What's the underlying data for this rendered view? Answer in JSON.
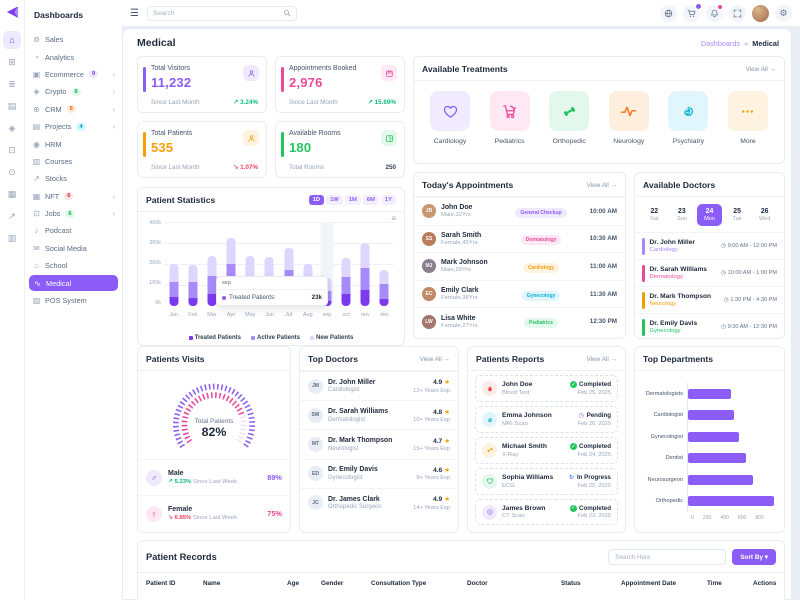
{
  "brand": {
    "name": "Dashboards"
  },
  "rail": {
    "icons": [
      {
        "name": "home-icon",
        "glyph": "⌂",
        "active": true
      },
      {
        "name": "apps-grid-icon",
        "glyph": "⊞"
      },
      {
        "name": "layers-icon",
        "glyph": "≣"
      },
      {
        "name": "pages-icon",
        "glyph": "▤"
      },
      {
        "name": "widgets-icon",
        "glyph": "◈"
      },
      {
        "name": "components-icon",
        "glyph": "⊡"
      },
      {
        "name": "explore-icon",
        "glyph": "⊙"
      },
      {
        "name": "media-icon",
        "glyph": "▦"
      },
      {
        "name": "charts-icon",
        "glyph": "↗"
      },
      {
        "name": "kanban-icon",
        "glyph": "▥"
      }
    ]
  },
  "sidebar": {
    "title": "Dashboards",
    "items": [
      {
        "label": "Sales",
        "icon": "sales-icon",
        "glyph": "⊚"
      },
      {
        "label": "Analytics",
        "icon": "analytics-icon",
        "glyph": "◔"
      },
      {
        "label": "Ecommerce",
        "icon": "ecommerce-icon",
        "glyph": "▣",
        "badge": "9",
        "badge_color": "#7c3aed",
        "badge_bg": "#ede9fe",
        "chevron": "›"
      },
      {
        "label": "Crypto",
        "icon": "crypto-icon",
        "glyph": "◈",
        "badge": "6",
        "badge_color": "#16a34a",
        "badge_bg": "#dcfce7",
        "chevron": "›"
      },
      {
        "label": "CRM",
        "icon": "crm-icon",
        "glyph": "⊕",
        "badge": "5",
        "badge_color": "#ea580c",
        "badge_bg": "#ffedd5",
        "chevron": "›"
      },
      {
        "label": "Projects",
        "icon": "projects-icon",
        "glyph": "▤",
        "badge": "4",
        "badge_color": "#0891b2",
        "badge_bg": "#cffafe",
        "chevron": "›"
      },
      {
        "label": "HRM",
        "icon": "hrm-icon",
        "glyph": "◉"
      },
      {
        "label": "Courses",
        "icon": "courses-icon",
        "glyph": "▥"
      },
      {
        "label": "Stocks",
        "icon": "stocks-icon",
        "glyph": "↗"
      },
      {
        "label": "NFT",
        "icon": "nft-icon",
        "glyph": "▦",
        "badge": "6",
        "badge_color": "#dc2626",
        "badge_bg": "#fee2e2",
        "chevron": "›"
      },
      {
        "label": "Jobs",
        "icon": "jobs-icon",
        "glyph": "⊡",
        "badge": "6",
        "badge_color": "#16a34a",
        "badge_bg": "#dcfce7",
        "chevron": "›"
      },
      {
        "label": "Podcast",
        "icon": "podcast-icon",
        "glyph": "♪"
      },
      {
        "label": "Social Media",
        "icon": "social-media-icon",
        "glyph": "✉"
      },
      {
        "label": "School",
        "icon": "school-icon",
        "glyph": "⌂"
      },
      {
        "label": "Medical",
        "icon": "medical-icon",
        "glyph": "∿",
        "active": true
      },
      {
        "label": "POS System",
        "icon": "pos-icon",
        "glyph": "▨"
      }
    ]
  },
  "header": {
    "search_placeholder": "Search",
    "icons": [
      {
        "name": "language-globe-icon"
      },
      {
        "name": "cart-icon",
        "badge_dot": true
      },
      {
        "name": "notifications-bell-icon",
        "dot": true
      },
      {
        "name": "fullscreen-icon"
      },
      {
        "name": "user-avatar"
      },
      {
        "name": "settings-gear-icon"
      }
    ]
  },
  "page": {
    "title": "Medical",
    "breadcrumb": {
      "parent": "Dashboards",
      "separator": "»",
      "current": "Medical"
    }
  },
  "stats": {
    "cards": [
      {
        "label": "Total Visitors",
        "value": "11,232",
        "accent": "#8b5cf6",
        "icon": "user-icon",
        "symbol": "icon-user",
        "icon_bg": "#efeafe",
        "note": "Since Last Month",
        "delta": "↗ 3.24%",
        "delta_color": "#10b981"
      },
      {
        "label": "Appointments Booked",
        "value": "2,976",
        "accent": "#ec4899",
        "icon": "calendar-icon",
        "symbol": "icon-calendar",
        "icon_bg": "#fde8f3",
        "note": "Since Last Month",
        "delta": "↗ 15.69%",
        "delta_color": "#10b981"
      },
      {
        "label": "Total Patients",
        "value": "535",
        "accent": "#f59e0b",
        "icon": "patient-icon",
        "symbol": "icon-user",
        "icon_bg": "#fef3e0",
        "note": "Since Last Month",
        "delta": "↘ 1.07%",
        "delta_color": "#f43f5e"
      },
      {
        "label": "Available Rooms",
        "value": "180",
        "accent": "#22c55e",
        "icon": "room-icon",
        "symbol": "icon-room",
        "icon_bg": "#e4f8ec",
        "note": "Total Rooms",
        "delta": "250",
        "delta_color": "#334155"
      }
    ]
  },
  "treatments": {
    "title": "Available Treatments",
    "view_all": "View All →",
    "items": [
      {
        "label": "Cardiology",
        "icon": "heart-icon",
        "symbol": "icon-heart",
        "bg": "#f0ebfe",
        "color": "#8b5cf6"
      },
      {
        "label": "Pediatrics",
        "icon": "stroller-icon",
        "symbol": "icon-stroller",
        "bg": "#fde8f4",
        "color": "#ec4899"
      },
      {
        "label": "Orthopedic",
        "icon": "bone-icon",
        "symbol": "icon-bone",
        "bg": "#e3f7ec",
        "color": "#22c55e"
      },
      {
        "label": "Neurology",
        "icon": "pulse-icon",
        "symbol": "icon-pulse",
        "bg": "#fdeede",
        "color": "#f97316"
      },
      {
        "label": "Psychiatry",
        "icon": "brain-icon",
        "symbol": "icon-brain",
        "bg": "#e0f5fc",
        "color": "#06b6d4"
      },
      {
        "label": "More",
        "icon": "more-dots-icon",
        "symbol": "icon-dots",
        "bg": "#fdf3e0",
        "color": "#f59e0b"
      }
    ]
  },
  "appointments": {
    "title": "Today's Appointments",
    "view_all": "View All →",
    "rows": [
      {
        "initials": "JD",
        "avatar_bg": "#c99772",
        "name": "John Doe",
        "meta": "Male,32Yrs",
        "badge": "General Checkup",
        "badge_color": "#8b5cf6",
        "badge_bg": "#f0eafe",
        "time": "10:00 AM"
      },
      {
        "initials": "SS",
        "avatar_bg": "#b97c5d",
        "name": "Sarah Smith",
        "meta": "Female,45Yrs",
        "badge": "Dermatology",
        "badge_color": "#ec4899",
        "badge_bg": "#fde8f3",
        "time": "10:30 AM"
      },
      {
        "initials": "MJ",
        "avatar_bg": "#8a7e8f",
        "name": "Mark Johnson",
        "meta": "Male,29Yrs",
        "badge": "Cardiology",
        "badge_color": "#f59e0b",
        "badge_bg": "#fef3e0",
        "time": "11:00 AM"
      },
      {
        "initials": "EC",
        "avatar_bg": "#c08a66",
        "name": "Emily Clark",
        "meta": "Female,38Yrs",
        "badge": "Gynecology",
        "badge_color": "#06b6d4",
        "badge_bg": "#e0f6fc",
        "time": "11:30 AM"
      },
      {
        "initials": "LW",
        "avatar_bg": "#a2766b",
        "name": "Lisa White",
        "meta": "Female,27Yrs",
        "badge": "Pediatrics",
        "badge_color": "#22c55e",
        "badge_bg": "#e4f8ec",
        "time": "12:30 PM"
      }
    ]
  },
  "available_doctors": {
    "title": "Available Doctors",
    "days": [
      {
        "num": "22",
        "day": "Sat"
      },
      {
        "num": "23",
        "day": "Sun"
      },
      {
        "num": "24",
        "day": "Mon",
        "active": true
      },
      {
        "num": "25",
        "day": "Tue"
      },
      {
        "num": "26",
        "day": "Wed"
      }
    ],
    "clock_glyph": "◷",
    "rows": [
      {
        "name": "Dr. John Miller",
        "specialty": "Cardiology",
        "color": "#a78bfa",
        "time": "9:00 AM - 12:00 PM"
      },
      {
        "name": "Dr. Sarah Williams",
        "specialty": "Dermatology",
        "color": "#ec4899",
        "time": "10:00 AM - 1:00 PM"
      },
      {
        "name": "Dr. Mark Thompson",
        "specialty": "Neurology",
        "color": "#f59e0b",
        "time": "1:30 PM - 4:30 PM"
      },
      {
        "name": "Dr. Emily Davis",
        "specialty": "Gynecology",
        "color": "#22c55e",
        "time": "9:30 AM - 12:30 PM"
      }
    ]
  },
  "visits": {
    "title": "Patients Visits",
    "center_label": "Total Patients",
    "center_value": "82%",
    "rows": [
      {
        "label": "Male",
        "glyph": "♂",
        "color": "#8b5cf6",
        "bg": "#efeafe",
        "delta": "↗ 5.23%",
        "delta_color": "#10b981",
        "note": " Since Last Week",
        "value": "89%"
      },
      {
        "label": "Female",
        "glyph": "♀",
        "color": "#ec4899",
        "bg": "#fde8f3",
        "delta": "↘ 6.85%",
        "delta_color": "#f43f5e",
        "note": " Since Last Week",
        "value": "75%"
      }
    ]
  },
  "top_doctors": {
    "title": "Top Doctors",
    "view_all": "View All →",
    "star": "★",
    "rows": [
      {
        "initials": "JM",
        "name": "Dr. John Miller",
        "specialty": "Cardiologist",
        "rating": "4.9",
        "exp": "12+ Years Exp"
      },
      {
        "initials": "SW",
        "name": "Dr. Sarah Williams",
        "specialty": "Dermatologist",
        "rating": "4.8",
        "exp": "10+ Years Exp"
      },
      {
        "initials": "MT",
        "name": "Dr. Mark Thompson",
        "specialty": "Neurologist",
        "rating": "4.7",
        "exp": "15+ Years Exp"
      },
      {
        "initials": "ED",
        "name": "Dr. Emily Davis",
        "specialty": "Gynecologist",
        "rating": "4.6",
        "exp": "9+ Years Exp"
      },
      {
        "initials": "JC",
        "name": "Dr. James Clark",
        "specialty": "Orthopedic Surgeon",
        "rating": "4.9",
        "exp": "14+ Years Exp"
      }
    ]
  },
  "reports": {
    "title": "Patients Reports",
    "view_all": "View All →",
    "rows": [
      {
        "name": "John Doe",
        "test": "Blood Test",
        "icon": "blood-drop-icon",
        "symbol": "icon-drop",
        "color": "#ef4444",
        "bg": "#fdeaea",
        "status": "Completed",
        "status_icon": "✓",
        "status_icon_color": "#ffffff",
        "status_icon_bg": "#22c55e",
        "date": "Feb 25, 2025"
      },
      {
        "name": "Emma Johnson",
        "test": "MRI Scan",
        "icon": "brain-icon",
        "symbol": "icon-brain",
        "color": "#06b6d4",
        "bg": "#e0f6fc",
        "status": "Pending",
        "status_icon": "◷",
        "status_icon_color": "#8b5cf6",
        "status_icon_bg": "transparent",
        "date": "Feb 26, 2025"
      },
      {
        "name": "Michael Smith",
        "test": "X-Ray",
        "icon": "bone-icon",
        "symbol": "icon-bone",
        "color": "#f59e0b",
        "bg": "#fef3e0",
        "status": "Completed",
        "status_icon": "✓",
        "status_icon_color": "#ffffff",
        "status_icon_bg": "#22c55e",
        "date": "Feb 24, 2025"
      },
      {
        "name": "Sophia Williams",
        "test": "ECG",
        "icon": "heart-icon",
        "symbol": "icon-heart",
        "color": "#22c55e",
        "bg": "#e4f8ec",
        "status": "In Progress",
        "status_icon": "↻",
        "status_icon_color": "#3b82f6",
        "status_icon_bg": "transparent",
        "date": "Feb 25, 2025"
      },
      {
        "name": "James Brown",
        "test": "CT Scan",
        "icon": "scan-icon",
        "symbol": "icon-scan",
        "color": "#8b5cf6",
        "bg": "#f0eafe",
        "status": "Completed",
        "status_icon": "✓",
        "status_icon_color": "#ffffff",
        "status_icon_bg": "#22c55e",
        "date": "Feb 23, 2025"
      }
    ]
  },
  "records": {
    "title": "Patient Records",
    "search_placeholder": "Search Here",
    "sort_label": "Sort By ▾",
    "headers": [
      "Patient ID",
      "Name",
      "Age",
      "Gender",
      "Consultation Type",
      "Doctor",
      "Status",
      "Appointment Date",
      "Time",
      "Actions"
    ]
  },
  "chart_data": [
    {
      "type": "bar",
      "variant": "stacked-column",
      "title": "Patient Statistics",
      "ranges": [
        {
          "label": "1D",
          "active": true
        },
        {
          "label": "1W"
        },
        {
          "label": "1M"
        },
        {
          "label": "6M"
        },
        {
          "label": "1Y"
        }
      ],
      "categories": [
        "Jan",
        "Feb",
        "Mar",
        "Apr",
        "May",
        "Jun",
        "Jul",
        "Aug",
        "sep",
        "oct",
        "nov",
        "dec"
      ],
      "series": [
        {
          "name": "Treated Patients",
          "color": "#7c3aed",
          "values": [
            45,
            40,
            58,
            85,
            55,
            50,
            65,
            40,
            23,
            55,
            75,
            35
          ]
        },
        {
          "name": "Active Patients",
          "color": "#a78bfa",
          "values": [
            70,
            72,
            87,
            115,
            90,
            90,
            105,
            70,
            50,
            85,
            108,
            70
          ]
        },
        {
          "name": "New Patients",
          "color": "#ddd6fe",
          "values": [
            85,
            83,
            95,
            125,
            95,
            92,
            108,
            88,
            62,
            90,
            117,
            65
          ]
        }
      ],
      "ylim": [
        0,
        400
      ],
      "yticks": [
        "400k",
        "300k",
        "200k",
        "100k",
        "0k"
      ],
      "grid": true,
      "legend_position": "bottom",
      "hover_month": "sep",
      "tooltip": {
        "title": "sep",
        "label": "Treated Patients:",
        "value": "23k"
      }
    },
    {
      "type": "bar",
      "variant": "horizontal",
      "title": "Top Departments",
      "categories": [
        "Dermatologists",
        "Cardiologist",
        "Gynecologist",
        "Dentist",
        "Neurosurgeon",
        "Orthopedic"
      ],
      "values": [
        400,
        430,
        470,
        540,
        600,
        800
      ],
      "bar_color": "#8b5cf6",
      "xlim": [
        0,
        800
      ],
      "xticks": [
        "0",
        "200",
        "400",
        "600",
        "800"
      ]
    }
  ]
}
